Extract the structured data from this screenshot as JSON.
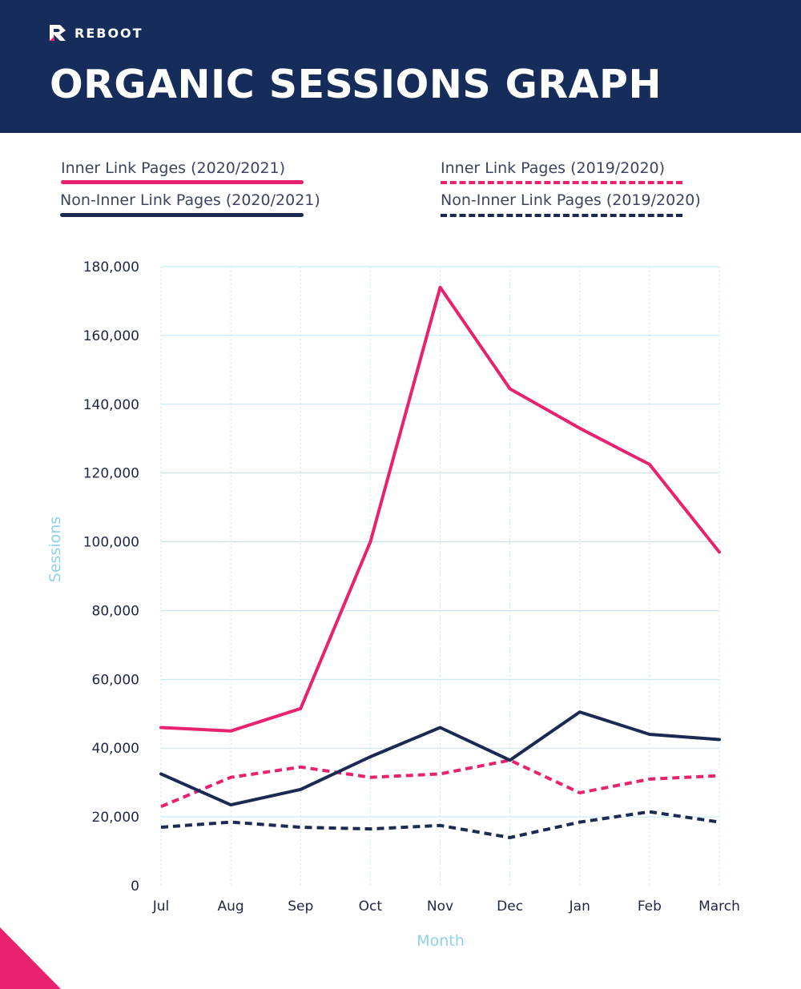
{
  "brand": {
    "name": "REBOOT",
    "logo_icon": "reboot-r-logo-icon"
  },
  "header": {
    "title": "ORGANIC SESSIONS GRAPH"
  },
  "colors": {
    "header_bg": "#162c5b",
    "pink": "#e8226e",
    "navy": "#1b2a52",
    "grid": "#bfe6f2",
    "axis_title": "#8ed3e8"
  },
  "chart_data": {
    "type": "line",
    "title": "",
    "xlabel": "Month",
    "ylabel": "Sessions",
    "categories": [
      "Jul",
      "Aug",
      "Sep",
      "Oct",
      "Nov",
      "Dec",
      "Jan",
      "Feb",
      "March"
    ],
    "ylim": [
      0,
      180000
    ],
    "yticks": [
      0,
      20000,
      40000,
      60000,
      80000,
      100000,
      120000,
      140000,
      160000,
      180000
    ],
    "ytick_labels": [
      "0",
      "20,000",
      "40,000",
      "60,000",
      "80,000",
      "100,000",
      "120,000",
      "140,000",
      "160,000",
      "180,000"
    ],
    "grid": true,
    "legend_position": "top",
    "series": [
      {
        "name": "Inner Link Pages (2020/2021)",
        "color": "#e8226e",
        "style": "solid",
        "values": [
          46000,
          45000,
          51500,
          100000,
          174000,
          144500,
          133000,
          122500,
          97000
        ]
      },
      {
        "name": "Non-Inner Link Pages (2020/2021)",
        "color": "#1b2a52",
        "style": "solid",
        "values": [
          32500,
          23500,
          28000,
          37500,
          46000,
          36500,
          50500,
          44000,
          42500
        ]
      },
      {
        "name": "Inner Link Pages (2019/2020)",
        "color": "#e8226e",
        "style": "dashed",
        "values": [
          23000,
          31500,
          34500,
          31500,
          32500,
          36500,
          27000,
          31000,
          32000
        ]
      },
      {
        "name": "Non-Inner Link Pages (2019/2020)",
        "color": "#1b2a52",
        "style": "dashed",
        "values": [
          17000,
          18500,
          17000,
          16500,
          17500,
          14000,
          18500,
          21500,
          18500
        ]
      }
    ]
  }
}
